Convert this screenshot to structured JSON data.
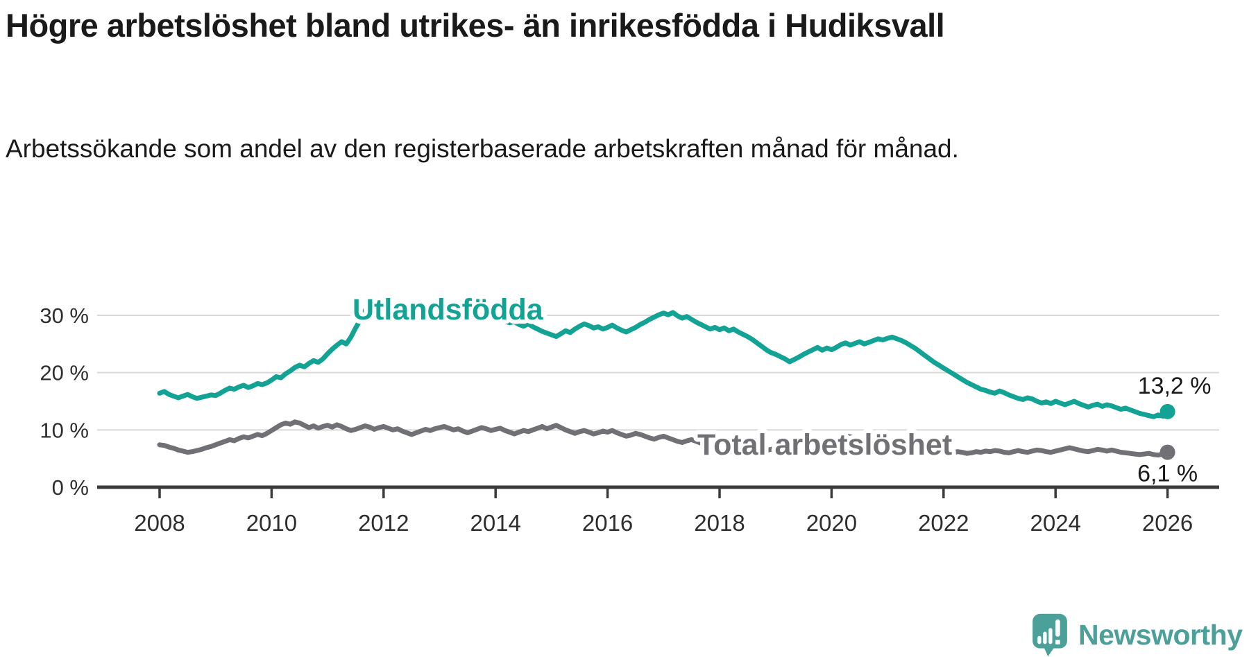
{
  "branding": {
    "logo_text": "Newsworthy",
    "logo_icon": "newsworthy-speech-bubble-bar-chart-icon",
    "logo_color": "#4BA09A"
  },
  "chart_data": {
    "type": "line",
    "title": "Högre arbetslöshet bland utrikes- än inrikesfödda i Hudiksvall",
    "subtitle": "Arbetssökande som andel av den registerbaserade arbetskraften månad för månad.",
    "xlabel": "",
    "ylabel": "",
    "ylim": [
      0,
      34
    ],
    "xlim_years": [
      2006.9,
      2026.93
    ],
    "grid": "horizontal",
    "legend": "inline-labels",
    "colors": {
      "utlandsfodda": "#13A394",
      "total": "#717175",
      "gridline": "#d8d8d8",
      "axis": "#3b3b3b",
      "text": "#2e2e2e",
      "annotation": "#1a1a1a"
    },
    "y_ticks": [
      {
        "value": 0,
        "label": "0 %"
      },
      {
        "value": 10,
        "label": "10 %"
      },
      {
        "value": 20,
        "label": "20 %"
      },
      {
        "value": 30,
        "label": "30 %"
      }
    ],
    "x_ticks": [
      {
        "year": 2008,
        "label": "2008"
      },
      {
        "year": 2010,
        "label": "2010"
      },
      {
        "year": 2012,
        "label": "2012"
      },
      {
        "year": 2014,
        "label": "2014"
      },
      {
        "year": 2016,
        "label": "2016"
      },
      {
        "year": 2018,
        "label": "2018"
      },
      {
        "year": 2020,
        "label": "2020"
      },
      {
        "year": 2022,
        "label": "2022"
      },
      {
        "year": 2024,
        "label": "2024"
      },
      {
        "year": 2026,
        "label": "2026"
      }
    ],
    "series": [
      {
        "id": "utlandsfodda",
        "name": "Utlandsfödda",
        "color": "#13A394",
        "start_year": 2008.0,
        "step": "monthly",
        "end_label": "13,2 %",
        "end_value": 13.2,
        "values": [
          16.4,
          16.7,
          16.2,
          15.9,
          15.6,
          15.9,
          16.2,
          15.8,
          15.5,
          15.7,
          15.9,
          16.1,
          16.0,
          16.4,
          16.9,
          17.3,
          17.1,
          17.5,
          17.8,
          17.4,
          17.7,
          18.1,
          17.9,
          18.2,
          18.7,
          19.3,
          19.1,
          19.8,
          20.3,
          20.9,
          21.3,
          21.0,
          21.6,
          22.1,
          21.8,
          22.4,
          23.3,
          24.1,
          24.8,
          25.4,
          25.0,
          26.2,
          27.8,
          29.2,
          30.8,
          31.9,
          32.4,
          31.8,
          32.2,
          31.5,
          30.9,
          30.6,
          31.0,
          30.7,
          30.3,
          30.8,
          30.5,
          30.2,
          30.6,
          30.9,
          31.0,
          31.3,
          30.8,
          30.5,
          30.9,
          31.1,
          30.7,
          30.4,
          30.0,
          30.3,
          29.9,
          29.6,
          29.8,
          29.4,
          29.0,
          28.7,
          28.9,
          28.4,
          28.1,
          28.5,
          28.0,
          27.6,
          27.2,
          26.9,
          26.6,
          26.3,
          26.8,
          27.3,
          27.0,
          27.6,
          28.1,
          28.5,
          28.2,
          27.8,
          28.0,
          27.6,
          27.9,
          28.3,
          27.8,
          27.4,
          27.1,
          27.5,
          27.9,
          28.4,
          28.8,
          29.3,
          29.7,
          30.1,
          30.4,
          30.1,
          30.5,
          29.9,
          29.5,
          29.8,
          29.3,
          28.8,
          28.4,
          28.0,
          27.6,
          27.9,
          27.5,
          27.8,
          27.3,
          27.6,
          27.1,
          26.7,
          26.3,
          25.8,
          25.2,
          24.6,
          24.0,
          23.5,
          23.2,
          22.8,
          22.4,
          21.9,
          22.3,
          22.7,
          23.2,
          23.6,
          24.0,
          24.4,
          23.9,
          24.3,
          24.0,
          24.4,
          24.9,
          25.2,
          24.8,
          25.1,
          25.4,
          25.0,
          25.3,
          25.6,
          25.9,
          25.7,
          26.0,
          26.2,
          25.9,
          25.6,
          25.2,
          24.7,
          24.2,
          23.6,
          23.0,
          22.4,
          21.8,
          21.3,
          20.8,
          20.3,
          19.8,
          19.3,
          18.8,
          18.3,
          17.9,
          17.5,
          17.1,
          16.9,
          16.6,
          16.4,
          16.8,
          16.5,
          16.1,
          15.8,
          15.5,
          15.3,
          15.6,
          15.4,
          15.0,
          14.7,
          14.9,
          14.6,
          15.0,
          14.7,
          14.4,
          14.7,
          15.0,
          14.6,
          14.3,
          14.0,
          14.3,
          14.5,
          14.1,
          14.4,
          14.2,
          13.9,
          13.6,
          13.8,
          13.5,
          13.2,
          12.9,
          12.7,
          12.5,
          12.3,
          12.6,
          12.4,
          13.2
        ]
      },
      {
        "id": "total",
        "name": "Total arbetslöshet",
        "color": "#717175",
        "start_year": 2008.0,
        "step": "monthly",
        "end_label": "6,1 %",
        "end_value": 6.1,
        "values": [
          7.4,
          7.3,
          7.0,
          6.8,
          6.5,
          6.3,
          6.1,
          6.2,
          6.4,
          6.6,
          6.9,
          7.1,
          7.4,
          7.7,
          8.0,
          8.3,
          8.1,
          8.5,
          8.8,
          8.6,
          8.9,
          9.2,
          9.0,
          9.4,
          9.9,
          10.4,
          10.9,
          11.2,
          11.0,
          11.4,
          11.2,
          10.8,
          10.4,
          10.7,
          10.3,
          10.6,
          10.8,
          10.5,
          10.9,
          10.6,
          10.2,
          9.9,
          10.1,
          10.4,
          10.7,
          10.5,
          10.1,
          10.4,
          10.6,
          10.3,
          10.0,
          10.2,
          9.8,
          9.5,
          9.2,
          9.5,
          9.8,
          10.1,
          9.9,
          10.2,
          10.4,
          10.6,
          10.3,
          10.0,
          10.2,
          9.8,
          9.5,
          9.8,
          10.1,
          10.4,
          10.2,
          9.9,
          10.1,
          10.3,
          9.9,
          9.6,
          9.3,
          9.6,
          9.9,
          9.7,
          10.0,
          10.3,
          10.6,
          10.2,
          10.5,
          10.8,
          10.4,
          10.0,
          9.7,
          9.4,
          9.7,
          9.9,
          9.6,
          9.3,
          9.5,
          9.8,
          9.6,
          9.9,
          9.5,
          9.2,
          8.9,
          9.1,
          9.4,
          9.2,
          8.9,
          8.6,
          8.4,
          8.7,
          8.9,
          8.6,
          8.3,
          8.0,
          7.8,
          8.1,
          8.3,
          8.0,
          7.7,
          7.5,
          7.3,
          7.6,
          7.8,
          7.5,
          7.2,
          7.0,
          6.8,
          7.0,
          7.2,
          6.9,
          6.7,
          6.5,
          6.4,
          6.6,
          6.8,
          6.6,
          6.4,
          6.2,
          6.4,
          6.6,
          6.8,
          7.0,
          7.2,
          7.4,
          7.3,
          7.5,
          7.7,
          8.0,
          8.6,
          9.0,
          8.8,
          8.6,
          8.4,
          8.2,
          8.0,
          7.8,
          7.6,
          7.4,
          7.6,
          7.4,
          7.2,
          7.0,
          6.8,
          6.6,
          6.4,
          6.3,
          6.2,
          6.1,
          6.0,
          6.2,
          6.3,
          6.1,
          6.0,
          6.2,
          6.1,
          5.9,
          6.0,
          6.2,
          6.1,
          6.3,
          6.2,
          6.4,
          6.3,
          6.1,
          6.0,
          6.2,
          6.4,
          6.2,
          6.1,
          6.3,
          6.5,
          6.4,
          6.2,
          6.1,
          6.3,
          6.5,
          6.7,
          6.9,
          6.7,
          6.5,
          6.3,
          6.2,
          6.4,
          6.6,
          6.5,
          6.3,
          6.5,
          6.3,
          6.1,
          6.0,
          5.9,
          5.8,
          5.7,
          5.8,
          5.9,
          5.7,
          5.6,
          5.8,
          6.1
        ]
      }
    ]
  }
}
